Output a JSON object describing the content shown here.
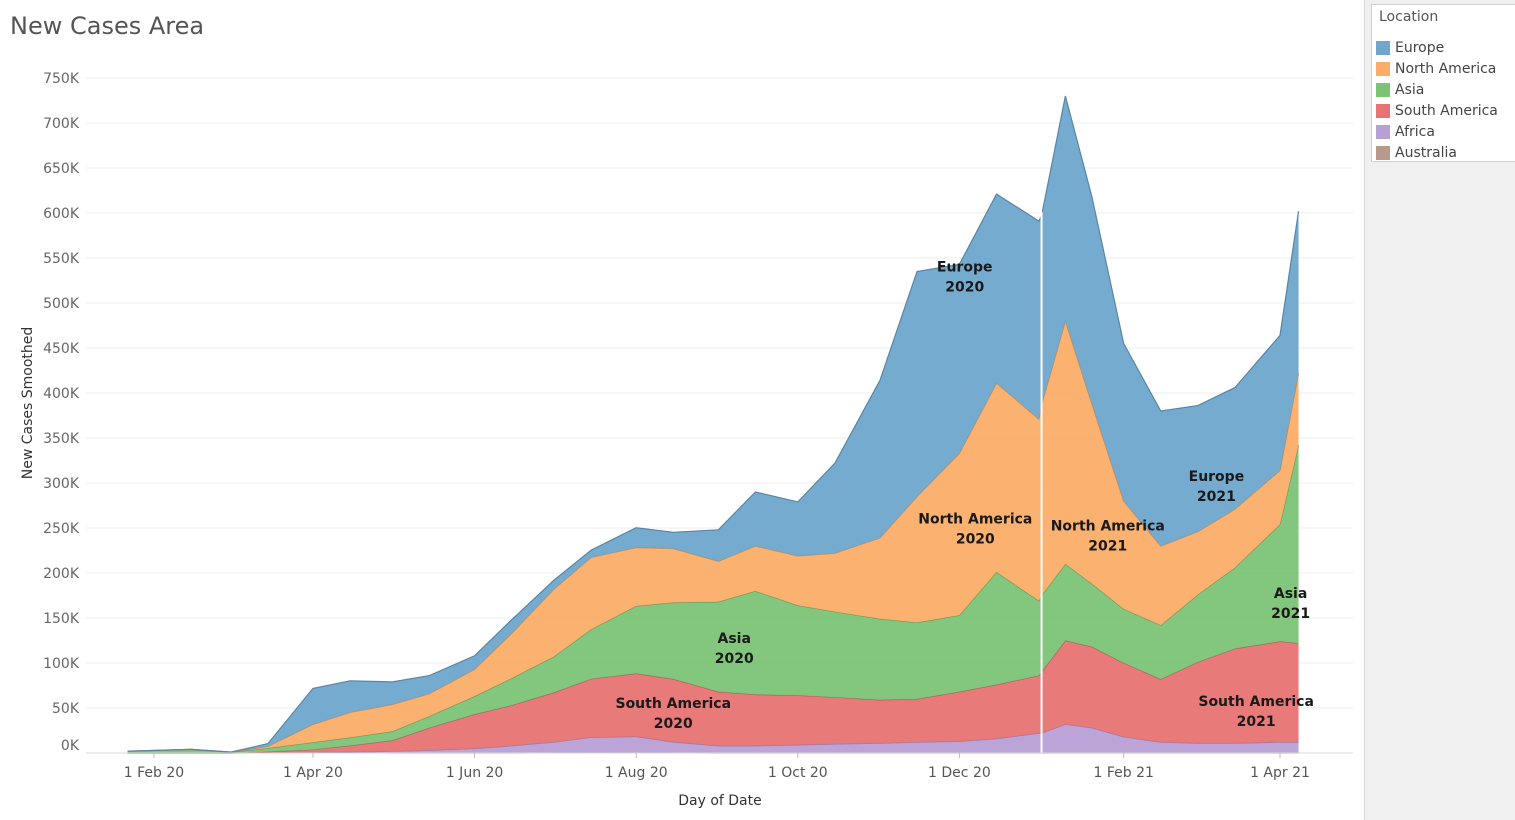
{
  "title": "New Cases Area",
  "legend": {
    "title": "Location",
    "items": [
      {
        "label": "Europe",
        "color": "#6fa6cd"
      },
      {
        "label": "North America",
        "color": "#fbad68"
      },
      {
        "label": "Asia",
        "color": "#7cc377"
      },
      {
        "label": "South America",
        "color": "#e77373"
      },
      {
        "label": "Africa",
        "color": "#b89fd6"
      },
      {
        "label": "Australia",
        "color": "#b89a8d"
      }
    ]
  },
  "chart_data": {
    "type": "area",
    "stacked": true,
    "xlabel": "Day of Date",
    "ylabel": "New Cases Smoothed",
    "ylim": [
      0,
      750000
    ],
    "grid": true,
    "y_ticks": [
      0,
      50000,
      100000,
      150000,
      200000,
      250000,
      300000,
      350000,
      400000,
      450000,
      500000,
      550000,
      600000,
      650000,
      700000,
      750000
    ],
    "y_tick_labels": [
      "0K",
      "50K",
      "100K",
      "150K",
      "200K",
      "250K",
      "300K",
      "350K",
      "400K",
      "450K",
      "500K",
      "550K",
      "600K",
      "650K",
      "700K",
      "750K"
    ],
    "x_ticks": [
      "2020-02-01",
      "2020-04-01",
      "2020-06-01",
      "2020-08-01",
      "2020-10-01",
      "2020-12-01",
      "2021-02-01",
      "2021-04-01"
    ],
    "x_tick_labels": [
      "1 Feb 20",
      "1 Apr 20",
      "1 Jun 20",
      "1 Aug 20",
      "1 Oct 20",
      "1 Dec 20",
      "1 Feb 21",
      "1 Apr 21"
    ],
    "x": [
      "2020-01-22",
      "2020-02-15",
      "2020-03-01",
      "2020-03-15",
      "2020-04-01",
      "2020-04-15",
      "2020-05-01",
      "2020-05-15",
      "2020-06-01",
      "2020-06-15",
      "2020-07-01",
      "2020-07-15",
      "2020-08-01",
      "2020-08-15",
      "2020-09-01",
      "2020-09-15",
      "2020-10-01",
      "2020-10-15",
      "2020-11-01",
      "2020-11-15",
      "2020-12-01",
      "2020-12-15",
      "2020-12-31",
      "2021-01-01",
      "2021-01-10",
      "2021-01-20",
      "2021-02-01",
      "2021-02-15",
      "2021-03-01",
      "2021-03-15",
      "2021-04-01",
      "2021-04-08"
    ],
    "series": [
      {
        "name": "Australia",
        "values": [
          0,
          0,
          0,
          200,
          300,
          200,
          0,
          0,
          0,
          0,
          200,
          400,
          300,
          200,
          0,
          0,
          0,
          0,
          0,
          0,
          0,
          0,
          0,
          0,
          0,
          0,
          0,
          0,
          0,
          0,
          0,
          0
        ]
      },
      {
        "name": "Africa",
        "values": [
          0,
          0,
          0,
          200,
          500,
          1000,
          2000,
          3000,
          5000,
          8000,
          12000,
          17000,
          18000,
          12000,
          8000,
          8000,
          9000,
          10000,
          11000,
          12000,
          13000,
          16000,
          22000,
          22000,
          32000,
          28000,
          18000,
          12000,
          11000,
          11000,
          12000,
          12000
        ]
      },
      {
        "name": "South America",
        "values": [
          0,
          0,
          0,
          1000,
          3000,
          7000,
          12000,
          25000,
          38000,
          45000,
          55000,
          65000,
          70000,
          70000,
          60000,
          57000,
          55000,
          52000,
          48000,
          48000,
          55000,
          60000,
          64000,
          68000,
          93000,
          90000,
          82000,
          70000,
          90000,
          105000,
          112000,
          110000
        ]
      },
      {
        "name": "Asia",
        "values": [
          2000,
          4000,
          1000,
          4000,
          8000,
          9000,
          10000,
          13000,
          20000,
          30000,
          40000,
          55000,
          75000,
          85000,
          100000,
          115000,
          100000,
          95000,
          90000,
          85000,
          85000,
          125000,
          83000,
          85000,
          85000,
          70000,
          60000,
          60000,
          75000,
          90000,
          130000,
          220000
        ]
      },
      {
        "name": "North America",
        "values": [
          0,
          0,
          0,
          2000,
          20000,
          28000,
          30000,
          25000,
          30000,
          50000,
          75000,
          80000,
          65000,
          60000,
          45000,
          50000,
          55000,
          65000,
          90000,
          140000,
          180000,
          210000,
          202000,
          212000,
          270000,
          200000,
          120000,
          88000,
          70000,
          65000,
          60000,
          80000
        ]
      },
      {
        "name": "Europe",
        "values": [
          0,
          0,
          0,
          3000,
          40000,
          35000,
          25000,
          20000,
          15000,
          15000,
          10000,
          8000,
          22000,
          18000,
          35000,
          60000,
          60000,
          100000,
          175000,
          250000,
          210000,
          210000,
          220000,
          210000,
          250000,
          230000,
          175000,
          150000,
          140000,
          135000,
          150000,
          180000
        ]
      }
    ],
    "annotations": [
      {
        "text": "Europe\n2020",
        "x": "2020-12-03",
        "y": 535000
      },
      {
        "text": "North America\n2020",
        "x": "2020-12-07",
        "y": 255000
      },
      {
        "text": "Asia\n2020",
        "x": "2020-09-07",
        "y": 122000
      },
      {
        "text": "South America\n2020",
        "x": "2020-08-15",
        "y": 50000
      },
      {
        "text": "Europe\n2021",
        "x": "2021-03-08",
        "y": 302000
      },
      {
        "text": "North America\n2021",
        "x": "2021-01-26",
        "y": 247000
      },
      {
        "text": "Asia\n2021",
        "x": "2021-04-05",
        "y": 172000
      },
      {
        "text": "South America\n2021",
        "x": "2021-03-23",
        "y": 52000
      }
    ],
    "reference_line_x": "2021-01-01"
  }
}
